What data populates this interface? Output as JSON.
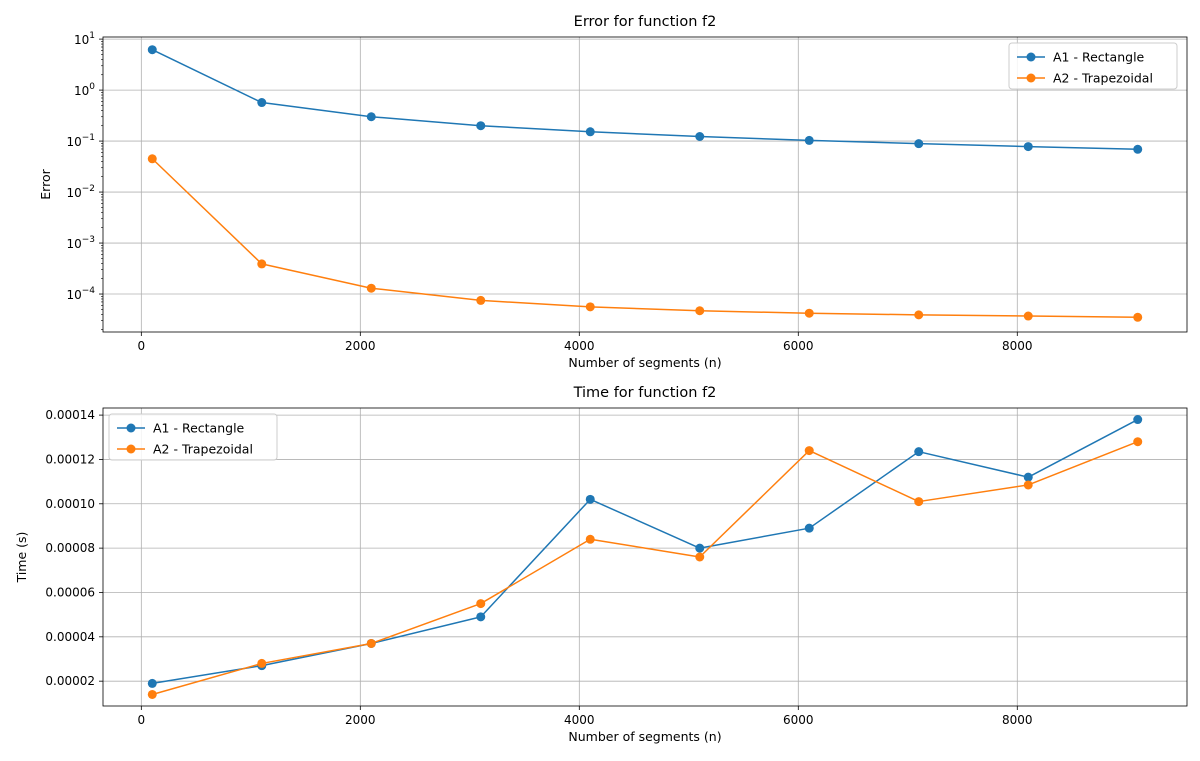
{
  "chart_data": [
    {
      "type": "line",
      "title": "Error for function f2",
      "xlabel": "Number of segments (n)",
      "ylabel": "Error",
      "yscale": "log",
      "xlim": [
        -350,
        9550
      ],
      "ylim": [
        1.8e-05,
        11
      ],
      "xticks": [
        0,
        2000,
        4000,
        6000,
        8000
      ],
      "xtick_labels": [
        "0",
        "2000",
        "4000",
        "6000",
        "8000"
      ],
      "yticks": [
        0.0001,
        0.001,
        0.01,
        0.1,
        1,
        10
      ],
      "ytick_labels": [
        {
          "base": "10",
          "exp": "−4"
        },
        {
          "base": "10",
          "exp": "−3"
        },
        {
          "base": "10",
          "exp": "−2"
        },
        {
          "base": "10",
          "exp": "−1"
        },
        {
          "base": "10",
          "exp": "0"
        },
        {
          "base": "10",
          "exp": "1"
        }
      ],
      "grid": true,
      "legend_position": "upper-right",
      "x": [
        100,
        1100,
        2100,
        3100,
        4100,
        5100,
        6100,
        7100,
        8100,
        9100
      ],
      "series": [
        {
          "name": "A1 - Rectangle",
          "color": "#1f77b4",
          "values": [
            6.2,
            0.57,
            0.3,
            0.2,
            0.152,
            0.123,
            0.103,
            0.089,
            0.078,
            0.069
          ]
        },
        {
          "name": "A2 - Trapezoidal",
          "color": "#ff7f0e",
          "values": [
            0.045,
            0.00039,
            0.00013,
            7.5e-05,
            5.6e-05,
            4.7e-05,
            4.2e-05,
            3.9e-05,
            3.7e-05,
            3.5e-05
          ]
        }
      ]
    },
    {
      "type": "line",
      "title": "Time for function f2",
      "xlabel": "Number of segments (n)",
      "ylabel": "Time (s)",
      "yscale": "linear",
      "xlim": [
        -350,
        9550
      ],
      "ylim": [
        8.8e-06,
        0.0001432
      ],
      "xticks": [
        0,
        2000,
        4000,
        6000,
        8000
      ],
      "xtick_labels": [
        "0",
        "2000",
        "4000",
        "6000",
        "8000"
      ],
      "yticks": [
        2e-05,
        4e-05,
        6e-05,
        8e-05,
        0.0001,
        0.00012,
        0.00014
      ],
      "ytick_labels": [
        "0.00002",
        "0.00004",
        "0.00006",
        "0.00008",
        "0.00010",
        "0.00012",
        "0.00014"
      ],
      "grid": true,
      "legend_position": "upper-left",
      "x": [
        100,
        1100,
        2100,
        3100,
        4100,
        5100,
        6100,
        7100,
        8100,
        9100
      ],
      "series": [
        {
          "name": "A1 - Rectangle",
          "color": "#1f77b4",
          "values": [
            1.9e-05,
            2.7e-05,
            3.7e-05,
            4.9e-05,
            0.000102,
            8e-05,
            8.9e-05,
            0.0001235,
            0.000112,
            0.000138
          ]
        },
        {
          "name": "A2 - Trapezoidal",
          "color": "#ff7f0e",
          "values": [
            1.4e-05,
            2.8e-05,
            3.7e-05,
            5.5e-05,
            8.4e-05,
            7.6e-05,
            0.000124,
            0.000101,
            0.0001085,
            0.000128
          ]
        }
      ]
    }
  ]
}
